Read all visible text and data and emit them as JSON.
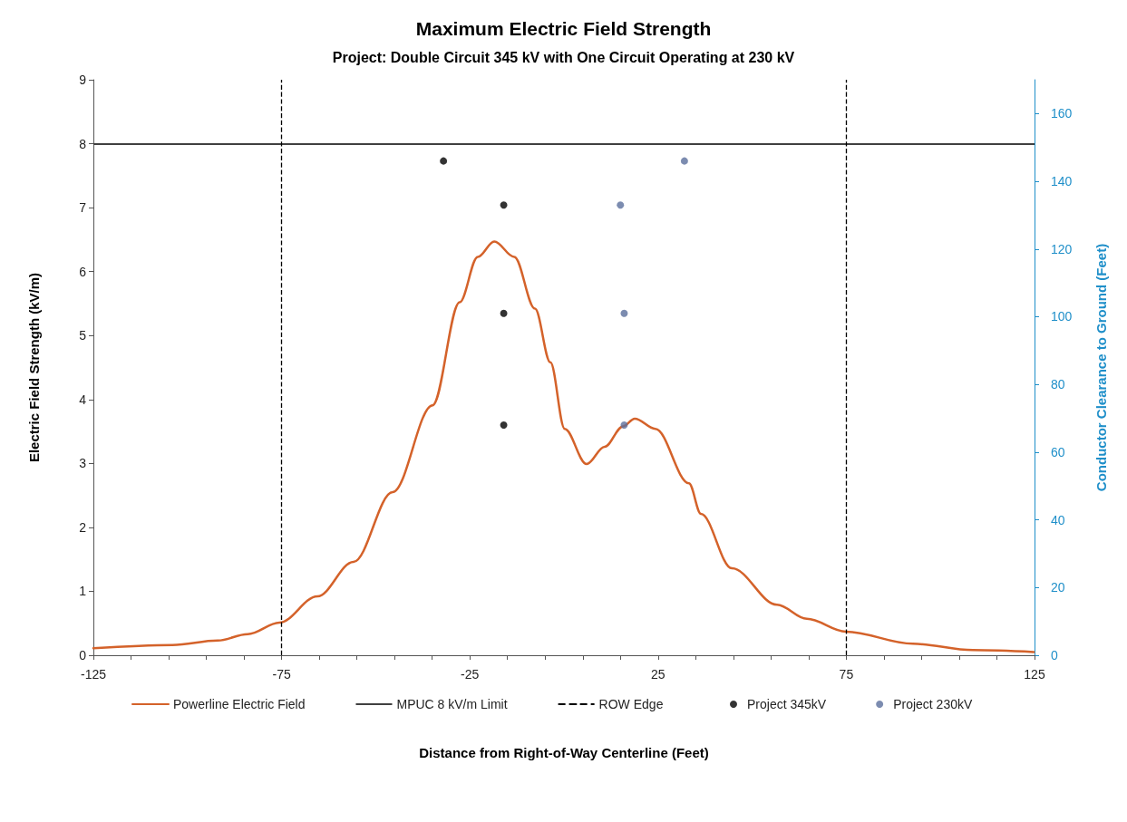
{
  "chart_data": {
    "type": "line",
    "title": "Maximum Electric Field Strength",
    "subtitle": "Project: Double Circuit 345 kV with One Circuit Operating at 230 kV",
    "xlabel": "Distance from Right-of-Way Centerline (Feet)",
    "ylabel": "Electric Field Strength (kV/m)",
    "y2label": "Conductor Clearance to Ground (Feet)",
    "xlim": [
      -125,
      125
    ],
    "xticks": [
      -125,
      {
        "value": -115,
        "label": null
      },
      {
        "value": -105,
        "label": null
      },
      {
        "value": -95,
        "label": null
      },
      {
        "value": -85,
        "label": null
      },
      -75,
      {
        "value": -65,
        "label": null
      },
      {
        "value": -55,
        "label": null
      },
      {
        "value": -45,
        "label": null
      },
      {
        "value": -35,
        "label": null
      },
      -25,
      {
        "value": -15,
        "label": null
      },
      {
        "value": -5,
        "label": null
      },
      {
        "value": 5,
        "label": null
      },
      {
        "value": 15,
        "label": null
      },
      25,
      {
        "value": 35,
        "label": null
      },
      {
        "value": 45,
        "label": null
      },
      {
        "value": 55,
        "label": null
      },
      {
        "value": 65,
        "label": null
      },
      75,
      {
        "value": 85,
        "label": null
      },
      {
        "value": 95,
        "label": null
      },
      {
        "value": 105,
        "label": null
      },
      {
        "value": 115,
        "label": null
      },
      125
    ],
    "ylim": [
      0,
      9
    ],
    "yticks": [
      0,
      1,
      2,
      3,
      4,
      5,
      6,
      7,
      8,
      9
    ],
    "y2lim": [
      0,
      170
    ],
    "y2ticks": [
      0,
      20,
      40,
      60,
      80,
      100,
      120,
      140,
      160
    ],
    "grid": false,
    "legend": "bottom",
    "series": [
      {
        "name": "Powerline Electric Field",
        "color": "#d4622a",
        "marker": "none",
        "line_style": "solid",
        "x": [
          -125,
          -104,
          -92,
          -84,
          -75.6,
          -65.5,
          -55.9,
          -45.5,
          -34.9,
          -27.7,
          -22.9,
          -18.5,
          -13.2,
          -7.7,
          -3.6,
          0.2,
          6,
          10.8,
          15.7,
          18.8,
          24.3,
          33.2,
          36.4,
          44.6,
          56.6,
          64.5,
          74.9,
          92.7,
          108.6,
          124.8
        ],
        "values": [
          0.11,
          0.16,
          0.23,
          0.33,
          0.51,
          0.92,
          1.46,
          2.55,
          3.91,
          5.52,
          6.23,
          6.47,
          6.23,
          5.42,
          4.58,
          3.54,
          2.99,
          3.26,
          3.58,
          3.7,
          3.54,
          2.69,
          2.21,
          1.36,
          0.79,
          0.57,
          0.37,
          0.18,
          0.08,
          0.05
        ]
      },
      {
        "name": "Project 345kV",
        "type": "scatter",
        "axis": "y2",
        "color": "#000000",
        "marker": "circle",
        "x": [
          -32,
          -16,
          -16,
          -16
        ],
        "values": [
          146,
          133,
          101,
          68
        ]
      },
      {
        "name": "Project 230kV",
        "type": "scatter",
        "axis": "y2",
        "color": "#5b6f9c",
        "marker": "circle",
        "x": [
          32,
          15,
          16,
          16
        ],
        "values": [
          146,
          133,
          101,
          68
        ]
      }
    ],
    "ref_lines": [
      {
        "axis": "y",
        "value": 8,
        "label": "MPUC 8 kV/m Limit",
        "color": "#404040",
        "line_style": "solid"
      },
      {
        "axis": "x",
        "value": -75,
        "label": "ROW Edge",
        "color": "#000000",
        "line_style": "dashed"
      },
      {
        "axis": "x",
        "value": 75,
        "label": null,
        "color": "#000000",
        "line_style": "dashed"
      }
    ]
  }
}
